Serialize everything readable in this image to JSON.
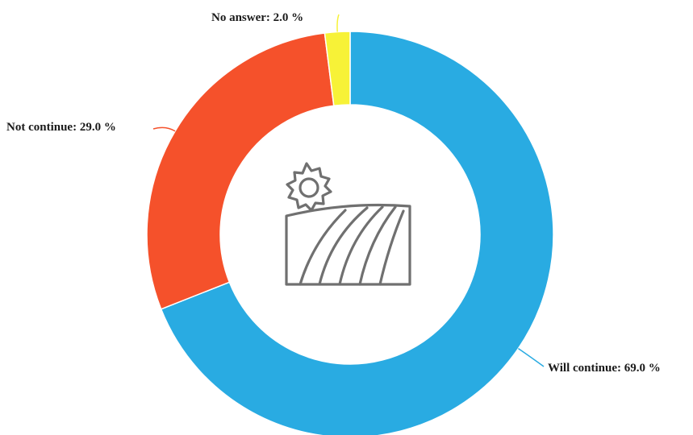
{
  "chart_data": {
    "type": "pie",
    "variant": "donut",
    "title": "",
    "center_icon": "farm-field-sun-icon",
    "series": [
      {
        "name": "Will continue",
        "value": 69.0,
        "label": "Will continue: 69.0 %",
        "color": "#29ABE2"
      },
      {
        "name": "Not continue",
        "value": 29.0,
        "label": "Not continue: 29.0 %",
        "color": "#F5512B"
      },
      {
        "name": "No answer",
        "value": 2.0,
        "label": "No answer: 2.0 %",
        "color": "#F7F237"
      }
    ]
  }
}
